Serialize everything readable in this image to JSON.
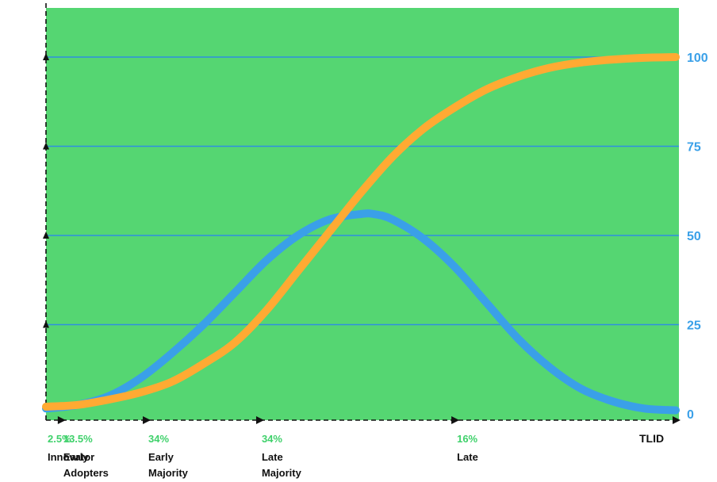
{
  "chart_data": {
    "type": "line",
    "title": "",
    "ylabel": "",
    "ylim": [
      0,
      100
    ],
    "yticks": [
      0,
      25,
      50,
      75,
      100
    ],
    "grid": true,
    "colors": {
      "background": "#55d672",
      "gridline": "#2f8fe0",
      "bell": "#3aa0e8",
      "s_curve": "#ffaa33",
      "tick_text": "#3aa0e8",
      "percent_text": "#3fd16b"
    },
    "segments": [
      {
        "percent": "2.5%",
        "label": [
          "Innovator"
        ]
      },
      {
        "percent": "13.5%",
        "label": [
          "Early",
          "Adopters"
        ]
      },
      {
        "percent": "34%",
        "label": [
          "Early",
          "Majority"
        ]
      },
      {
        "percent": "34%",
        "label": [
          "Late",
          "Majority"
        ]
      },
      {
        "percent": "16%",
        "label": [
          "Late"
        ]
      }
    ],
    "x_end_label": "TLID",
    "series": [
      {
        "kind": "bell",
        "x": [
          0,
          5,
          10,
          15,
          20,
          25,
          30,
          35,
          40,
          45,
          50,
          52,
          55,
          60,
          65,
          70,
          75,
          80,
          85,
          90,
          95,
          100
        ],
        "values": [
          1.5,
          2.5,
          5,
          10,
          17,
          25,
          34,
          43,
          50,
          54.5,
          56,
          56,
          54.5,
          49,
          41,
          31,
          21,
          13,
          7,
          3.5,
          1.5,
          1
        ]
      },
      {
        "kind": "s-curve",
        "x": [
          0,
          5,
          10,
          15,
          20,
          25,
          30,
          35,
          40,
          45,
          50,
          55,
          60,
          65,
          70,
          75,
          80,
          85,
          90,
          95,
          100
        ],
        "values": [
          2,
          2.5,
          4,
          6,
          9,
          14,
          20,
          29,
          40,
          51,
          62,
          72,
          80,
          86,
          91,
          94.5,
          97,
          98.5,
          99.3,
          99.8,
          100
        ]
      }
    ]
  }
}
